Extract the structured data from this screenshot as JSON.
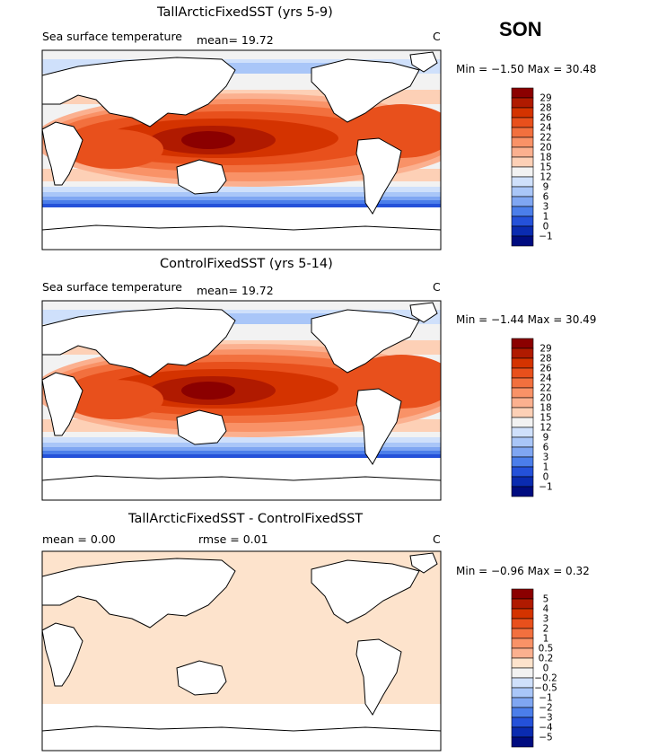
{
  "season": "SON",
  "colors": {
    "ocean_fill_lightpeach": "#fde3cc",
    "land": "#ffffff",
    "frame": "#000000"
  },
  "panels": [
    {
      "title": "TallArcticFixedSST (yrs 5-9)",
      "subtitle_left": "Sea surface temperature",
      "subtitle_mid": "mean=   19.72",
      "unit": "C",
      "stats": "Min =   −1.50  Max =   30.48",
      "colorbar": {
        "labels": [
          "29",
          "28",
          "26",
          "24",
          "22",
          "20",
          "18",
          "15",
          "12",
          "9",
          "6",
          "3",
          "1",
          "0",
          "−1"
        ],
        "colors": [
          "#8b0000",
          "#b01a00",
          "#d43300",
          "#e8501c",
          "#f2703e",
          "#f99267",
          "#fbb08f",
          "#fdd0b6",
          "#f2f2f2",
          "#cfe0fb",
          "#a9c6f8",
          "#7fa6f2",
          "#4b7eea",
          "#2451d9",
          "#0a2bb0",
          "#000c80"
        ]
      }
    },
    {
      "title": "ControlFixedSST (yrs 5-14)",
      "subtitle_left": "Sea surface temperature",
      "subtitle_mid": "mean=   19.72",
      "unit": "C",
      "stats": "Min =   −1.44  Max =   30.49",
      "colorbar": {
        "labels": [
          "29",
          "28",
          "26",
          "24",
          "22",
          "20",
          "18",
          "15",
          "12",
          "9",
          "6",
          "3",
          "1",
          "0",
          "−1"
        ],
        "colors": [
          "#8b0000",
          "#b01a00",
          "#d43300",
          "#e8501c",
          "#f2703e",
          "#f99267",
          "#fbb08f",
          "#fdd0b6",
          "#f2f2f2",
          "#cfe0fb",
          "#a9c6f8",
          "#7fa6f2",
          "#4b7eea",
          "#2451d9",
          "#0a2bb0",
          "#000c80"
        ]
      }
    },
    {
      "title": "TallArcticFixedSST - ControlFixedSST",
      "subtitle_left": "mean =     0.00",
      "subtitle_mid": "rmse =     0.01",
      "unit": "C",
      "stats": "Min =   −0.96  Max =     0.32",
      "colorbar": {
        "labels": [
          "5",
          "4",
          "3",
          "2",
          "1",
          "0.5",
          "0.2",
          "0",
          "−0.2",
          "−0.5",
          "−1",
          "−2",
          "−3",
          "−4",
          "−5"
        ],
        "colors": [
          "#8b0000",
          "#b01a00",
          "#d43300",
          "#e8501c",
          "#f2703e",
          "#f99267",
          "#fbb08f",
          "#fde3cc",
          "#f2f2f2",
          "#cfe0fb",
          "#a9c6f8",
          "#7fa6f2",
          "#4b7eea",
          "#2451d9",
          "#0a2bb0",
          "#000c80"
        ]
      }
    }
  ]
}
